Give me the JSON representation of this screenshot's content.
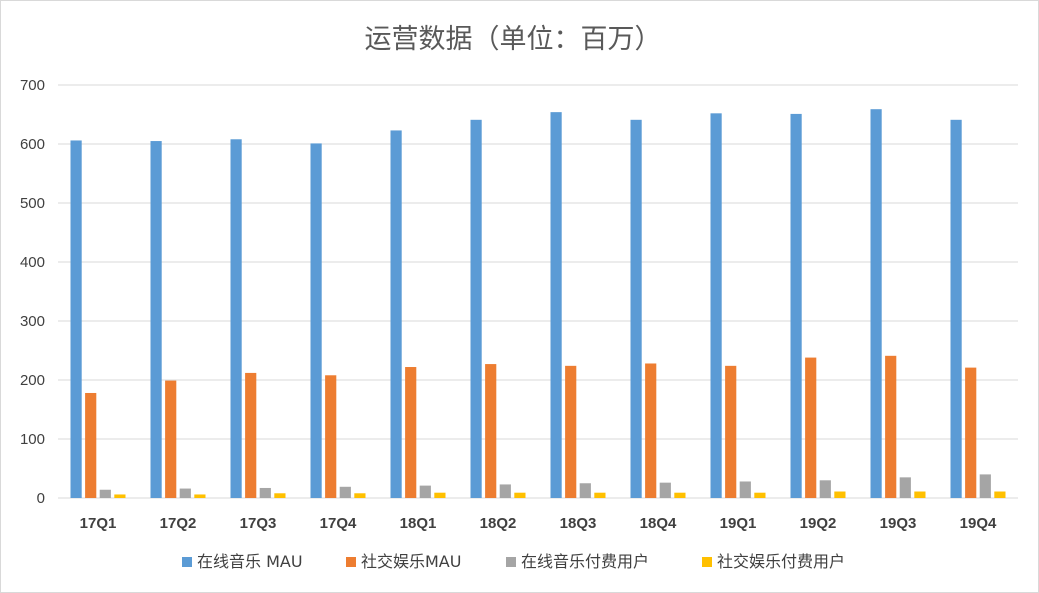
{
  "chart_data": {
    "type": "bar",
    "title": "运营数据（单位：百万）",
    "categories": [
      "17Q1",
      "17Q2",
      "17Q3",
      "17Q4",
      "18Q1",
      "18Q2",
      "18Q3",
      "18Q4",
      "19Q1",
      "19Q2",
      "19Q3",
      "19Q4"
    ],
    "series": [
      {
        "name": "在线音乐 MAU",
        "color": "#5b9bd5",
        "values": [
          606,
          605,
          608,
          601,
          623,
          641,
          654,
          641,
          652,
          651,
          659,
          641
        ]
      },
      {
        "name": "社交娱乐MAU",
        "color": "#ed7d31",
        "values": [
          178,
          199,
          212,
          208,
          222,
          227,
          224,
          228,
          224,
          238,
          241,
          221
        ]
      },
      {
        "name": "在线音乐付费用户",
        "color": "#a5a5a5",
        "values": [
          14,
          16,
          17,
          19,
          21,
          23,
          25,
          26,
          28,
          30,
          35,
          40
        ]
      },
      {
        "name": "社交娱乐付费用户",
        "color": "#ffc000",
        "values": [
          6,
          6,
          8,
          8,
          9,
          9,
          9,
          9,
          9,
          11,
          11,
          11
        ]
      }
    ],
    "ylim": [
      0,
      700
    ],
    "yticks": [
      0,
      100,
      200,
      300,
      400,
      500,
      600,
      700
    ],
    "grid": true,
    "legend": "bottom",
    "xlabel": "",
    "ylabel": ""
  }
}
